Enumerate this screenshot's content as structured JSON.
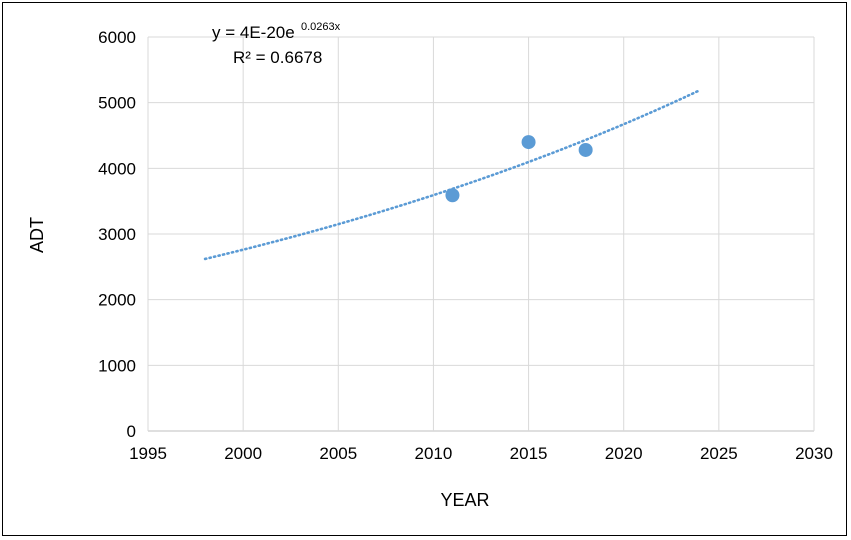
{
  "chart_data": {
    "type": "scatter",
    "title": "",
    "xlabel": "YEAR",
    "ylabel": "ADT",
    "xlim": [
      1995,
      2030
    ],
    "ylim": [
      0,
      6000
    ],
    "xticks": [
      1995,
      2000,
      2005,
      2010,
      2015,
      2020,
      2025,
      2030
    ],
    "yticks": [
      0,
      1000,
      2000,
      3000,
      4000,
      5000,
      6000
    ],
    "grid": true,
    "legend": "none",
    "series": [
      {
        "points": [
          {
            "x": 2011,
            "y": 3590
          },
          {
            "x": 2015,
            "y": 4400
          },
          {
            "x": 2018,
            "y": 4280
          }
        ],
        "color": "#5B9BD5"
      }
    ],
    "trendline": {
      "type": "exponential",
      "style": "dotted",
      "color": "#5B9BD5",
      "x_range": [
        1998,
        2024
      ],
      "y_range": [
        2620,
        5190
      ],
      "equation_main": "y = 4E-20e",
      "equation_exponent": "0.0263x",
      "r_squared": "R² = 0.6678"
    }
  }
}
